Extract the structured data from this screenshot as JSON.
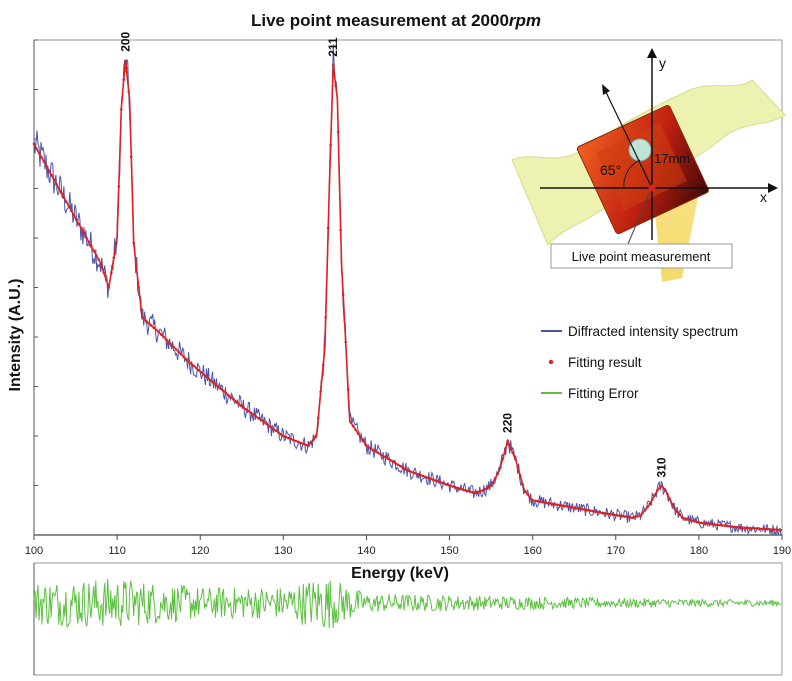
{
  "chart_data": {
    "type": "line",
    "title_main": "Live point measurement at 2000",
    "title_italic": "rpm",
    "xlabel": "Energy (keV)",
    "ylabel": "Intensity (A.U.)",
    "xlim": [
      100,
      190
    ],
    "xticks": [
      100,
      110,
      120,
      130,
      140,
      150,
      160,
      170,
      180,
      190
    ],
    "ylim": [
      0,
      100
    ],
    "y_tick_labels_shown": false,
    "grid": false,
    "legend_position": "right",
    "series": [
      {
        "name": "Diffracted intensity spectrum",
        "color": "#4a55a8",
        "style": "noisy-line",
        "x": [
          100,
          102,
          104,
          106,
          108,
          109,
          110,
          110.5,
          111,
          111.5,
          112,
          113,
          115,
          118,
          120,
          125,
          130,
          133,
          134,
          135,
          135.5,
          136,
          136.5,
          137,
          138,
          140,
          145,
          150,
          153,
          154,
          155,
          156,
          157,
          158,
          159,
          160,
          165,
          170,
          172,
          173,
          174,
          175,
          175.5,
          176,
          177,
          178,
          180,
          185,
          190
        ],
        "y": [
          79,
          73,
          67,
          61,
          55,
          50,
          60,
          86,
          96,
          88,
          59,
          44,
          41,
          36,
          33,
          26,
          20,
          18,
          20,
          38,
          68,
          95,
          88,
          55,
          23,
          18,
          13,
          10,
          8.5,
          9,
          10,
          13,
          19,
          15,
          9,
          7,
          5.5,
          4,
          3.5,
          4,
          6,
          9,
          10,
          9,
          5.5,
          3.5,
          2.5,
          1.5,
          1
        ]
      },
      {
        "name": "Fitting result",
        "color": "#e02020",
        "style": "markers",
        "x": [
          100,
          102,
          104,
          106,
          108,
          109,
          110,
          110.5,
          111,
          111.5,
          112,
          113,
          115,
          118,
          120,
          125,
          130,
          133,
          134,
          135,
          135.5,
          136,
          136.5,
          137,
          138,
          140,
          145,
          150,
          153,
          154,
          155,
          156,
          157,
          158,
          159,
          160,
          165,
          170,
          172,
          173,
          174,
          175,
          175.5,
          176,
          177,
          178,
          180,
          185,
          190
        ],
        "y": [
          79,
          73,
          67,
          61,
          55,
          50,
          60,
          86,
          96,
          88,
          59,
          44,
          41,
          36,
          33,
          26,
          20,
          18,
          20,
          38,
          68,
          95,
          88,
          55,
          23,
          18,
          13,
          10,
          8.5,
          9,
          10,
          13,
          19,
          15,
          9,
          7,
          5.5,
          4,
          3.5,
          4,
          6,
          9,
          10,
          9,
          5.5,
          3.5,
          2.5,
          1.5,
          1
        ]
      },
      {
        "name": "Fitting Error",
        "color": "#5cc040",
        "style": "noisy-residual",
        "x": [
          100,
          110,
          120,
          130,
          135,
          140,
          150,
          160,
          170,
          180,
          190
        ],
        "y": [
          0,
          0,
          0,
          0,
          0,
          0,
          0,
          0,
          0,
          0,
          0
        ],
        "amplitude": [
          7,
          8,
          5,
          5,
          9,
          3,
          2.5,
          2,
          1.5,
          1.2,
          1
        ]
      }
    ],
    "peaks": [
      {
        "label": "200",
        "x": 111,
        "y": 96
      },
      {
        "label": "211",
        "x": 136,
        "y": 95
      },
      {
        "label": "220",
        "x": 157,
        "y": 19
      },
      {
        "label": "310",
        "x": 175.5,
        "y": 10
      }
    ],
    "inset": {
      "callout_label": "Live point measurement",
      "axis_x_label": "x",
      "axis_y_label": "y",
      "angle_label": "65°",
      "distance_label": "17mm"
    }
  }
}
